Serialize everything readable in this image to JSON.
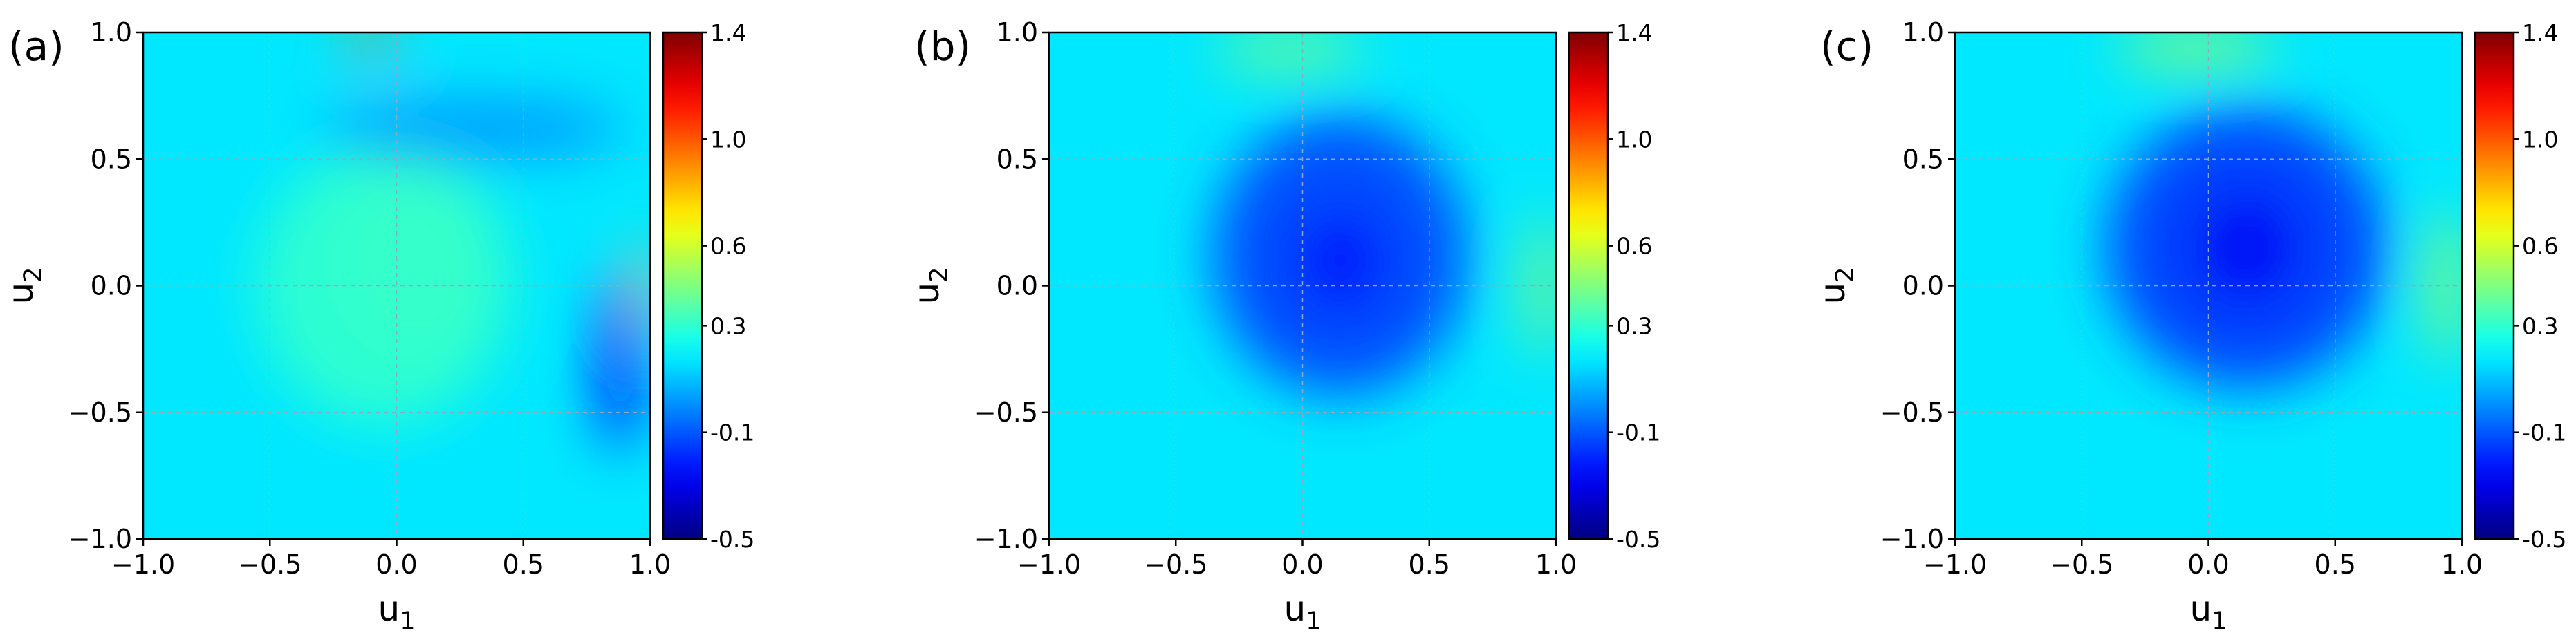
{
  "chart_data": [
    {
      "type": "heatmap",
      "panel_label": "(a)",
      "xlabel": "u",
      "xlabel_sub": "1",
      "ylabel": "u",
      "ylabel_sub": "2",
      "xlim": [
        -1.0,
        1.0
      ],
      "ylim": [
        -1.0,
        1.0
      ],
      "x_ticks": [
        "−1.0",
        "−0.5",
        "0.0",
        "0.5",
        "1.0"
      ],
      "y_ticks": [
        "1.0",
        "0.5",
        "0.0",
        "−0.5",
        "−1.0"
      ],
      "grid": true,
      "colorbar": {
        "colormap": "jet",
        "range": [
          -0.5,
          1.4
        ],
        "ticks": [
          {
            "value": 1.4,
            "label": "1.4"
          },
          {
            "value": 1.0,
            "label": "1.0"
          },
          {
            "value": 0.6,
            "label": "0.6"
          },
          {
            "value": 0.3,
            "label": "0.3"
          },
          {
            "value": -0.1,
            "label": "-0.1"
          },
          {
            "value": -0.5,
            "label": "-0.5"
          }
        ]
      },
      "background_value": 0.17,
      "features": [
        {
          "x": 0.1,
          "y": 0.1,
          "rx": 0.32,
          "ry": 0.38,
          "value": 0.5
        },
        {
          "x": -0.05,
          "y": 0.0,
          "rx": 0.5,
          "ry": 0.55,
          "value": 0.3
        },
        {
          "x": -0.1,
          "y": 0.97,
          "rx": 0.12,
          "ry": 0.04,
          "value": 0.95
        },
        {
          "x": 0.97,
          "y": -0.02,
          "rx": 0.04,
          "ry": 0.2,
          "value": 0.8
        },
        {
          "x": 0.88,
          "y": -0.3,
          "rx": 0.08,
          "ry": 0.35,
          "value": -0.25
        },
        {
          "x": 0.3,
          "y": 0.62,
          "rx": 0.6,
          "ry": 0.12,
          "value": 0.02
        }
      ]
    },
    {
      "type": "heatmap",
      "panel_label": "(b)",
      "xlabel": "u",
      "xlabel_sub": "1",
      "ylabel": "u",
      "ylabel_sub": "2",
      "xlim": [
        -1.0,
        1.0
      ],
      "ylim": [
        -1.0,
        1.0
      ],
      "x_ticks": [
        "−1.0",
        "−0.5",
        "0.0",
        "0.5",
        "1.0"
      ],
      "y_ticks": [
        "1.0",
        "0.5",
        "0.0",
        "−0.5",
        "−1.0"
      ],
      "grid": true,
      "colorbar": {
        "colormap": "jet",
        "range": [
          -0.5,
          1.4
        ],
        "ticks": [
          {
            "value": 1.4,
            "label": "1.4"
          },
          {
            "value": 1.0,
            "label": "1.0"
          },
          {
            "value": 0.6,
            "label": "0.6"
          },
          {
            "value": 0.3,
            "label": "0.3"
          },
          {
            "value": -0.1,
            "label": "-0.1"
          },
          {
            "value": -0.5,
            "label": "-0.5"
          }
        ]
      },
      "background_value": 0.17,
      "features": [
        {
          "x": 0.15,
          "y": 0.12,
          "rx": 0.5,
          "ry": 0.55,
          "value": -0.13
        },
        {
          "x": 0.15,
          "y": 0.1,
          "rx": 0.18,
          "ry": 0.2,
          "value": -0.22
        },
        {
          "x": -0.05,
          "y": 0.93,
          "rx": 0.3,
          "ry": 0.07,
          "value": 0.45
        },
        {
          "x": 0.95,
          "y": 0.0,
          "rx": 0.06,
          "ry": 0.28,
          "value": 0.5
        }
      ]
    },
    {
      "type": "heatmap",
      "panel_label": "(c)",
      "xlabel": "u",
      "xlabel_sub": "1",
      "ylabel": "u",
      "ylabel_sub": "2",
      "xlim": [
        -1.0,
        1.0
      ],
      "ylim": [
        -1.0,
        1.0
      ],
      "x_ticks": [
        "−1.0",
        "−0.5",
        "0.0",
        "0.5",
        "1.0"
      ],
      "y_ticks": [
        "1.0",
        "0.5",
        "0.0",
        "−0.5",
        "−1.0"
      ],
      "grid": true,
      "colorbar": {
        "colormap": "jet",
        "range": [
          -0.5,
          1.4
        ],
        "ticks": [
          {
            "value": 1.4,
            "label": "1.4"
          },
          {
            "value": 1.0,
            "label": "1.0"
          },
          {
            "value": 0.6,
            "label": "0.6"
          },
          {
            "value": 0.3,
            "label": "0.3"
          },
          {
            "value": -0.1,
            "label": "-0.1"
          },
          {
            "value": -0.5,
            "label": "-0.5"
          }
        ]
      },
      "background_value": 0.17,
      "features": [
        {
          "x": 0.15,
          "y": 0.15,
          "rx": 0.55,
          "ry": 0.55,
          "value": -0.15
        },
        {
          "x": 0.15,
          "y": 0.15,
          "rx": 0.2,
          "ry": 0.22,
          "value": -0.28
        },
        {
          "x": -0.05,
          "y": 0.94,
          "rx": 0.32,
          "ry": 0.07,
          "value": 0.5
        },
        {
          "x": 0.94,
          "y": 0.0,
          "rx": 0.07,
          "ry": 0.3,
          "value": 0.5
        }
      ]
    }
  ]
}
